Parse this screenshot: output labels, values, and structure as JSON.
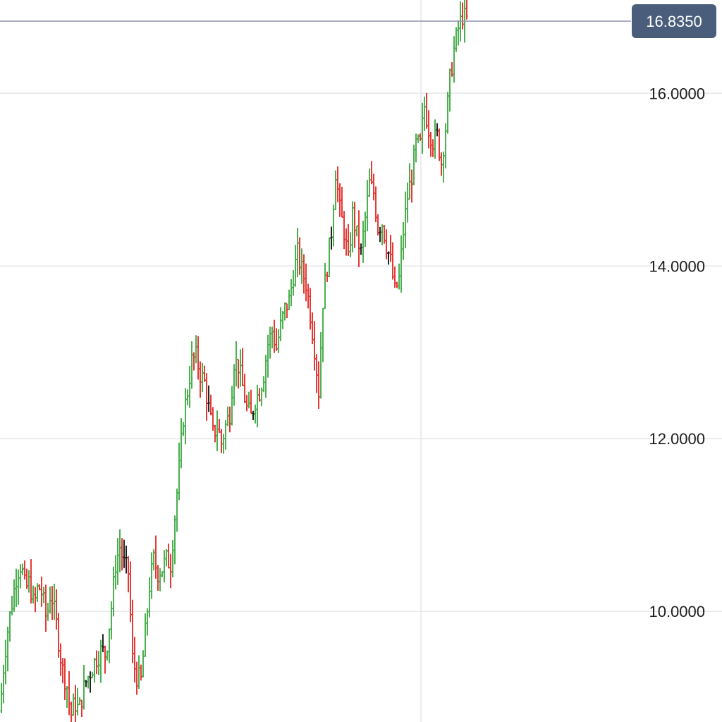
{
  "chart_data": {
    "type": "ohlc",
    "title": "",
    "xlabel": "",
    "ylabel": "",
    "ylim": [
      8.72,
      17.08
    ],
    "y_ticks": [
      "10.0000",
      "12.0000",
      "14.0000",
      "16.0000"
    ],
    "y_tick_values": [
      10,
      12,
      14,
      16
    ],
    "grid": true,
    "current_price": {
      "value": 16.835,
      "label": "16.8350"
    },
    "colors": {
      "up": "#4caf50",
      "down": "#e53935",
      "neutral": "#222222",
      "grid": "#e6e6ea",
      "price_line": "#8e93b0",
      "badge": "#4a5d7a"
    },
    "anchors": [
      [
        0,
        8.85
      ],
      [
        6,
        9.45
      ],
      [
        12,
        9.85
      ],
      [
        18,
        10.15
      ],
      [
        24,
        10.45
      ],
      [
        30,
        10.55
      ],
      [
        36,
        10.25
      ],
      [
        42,
        10.35
      ],
      [
        48,
        10.05
      ],
      [
        54,
        10.3
      ],
      [
        60,
        10.2
      ],
      [
        66,
        9.9
      ],
      [
        72,
        10.25
      ],
      [
        80,
        9.85
      ],
      [
        88,
        9.35
      ],
      [
        96,
        9.1
      ],
      [
        100,
        8.78
      ],
      [
        106,
        8.95
      ],
      [
        112,
        8.85
      ],
      [
        120,
        9.15
      ],
      [
        128,
        9.3
      ],
      [
        136,
        9.45
      ],
      [
        144,
        9.55
      ],
      [
        150,
        9.5
      ],
      [
        158,
        10.05
      ],
      [
        164,
        10.55
      ],
      [
        170,
        10.75
      ],
      [
        176,
        10.55
      ],
      [
        182,
        10.45
      ],
      [
        188,
        9.45
      ],
      [
        194,
        9.25
      ],
      [
        200,
        9.2
      ],
      [
        206,
        9.75
      ],
      [
        212,
        10.3
      ],
      [
        218,
        10.6
      ],
      [
        224,
        10.45
      ],
      [
        230,
        10.5
      ],
      [
        236,
        10.6
      ],
      [
        242,
        10.55
      ],
      [
        248,
        11.1
      ],
      [
        254,
        11.65
      ],
      [
        260,
        12.25
      ],
      [
        266,
        12.55
      ],
      [
        272,
        12.9
      ],
      [
        278,
        12.95
      ],
      [
        284,
        12.75
      ],
      [
        290,
        12.65
      ],
      [
        296,
        12.35
      ],
      [
        302,
        12.05
      ],
      [
        308,
        12.15
      ],
      [
        314,
        11.95
      ],
      [
        320,
        12.15
      ],
      [
        326,
        12.3
      ],
      [
        332,
        12.9
      ],
      [
        338,
        12.85
      ],
      [
        344,
        12.6
      ],
      [
        350,
        12.35
      ],
      [
        356,
        12.25
      ],
      [
        362,
        12.45
      ],
      [
        368,
        12.55
      ],
      [
        374,
        12.75
      ],
      [
        380,
        13.1
      ],
      [
        386,
        13.25
      ],
      [
        392,
        13.05
      ],
      [
        398,
        13.3
      ],
      [
        404,
        13.5
      ],
      [
        410,
        13.6
      ],
      [
        416,
        13.9
      ],
      [
        422,
        14.15
      ],
      [
        428,
        13.95
      ],
      [
        434,
        13.8
      ],
      [
        440,
        13.45
      ],
      [
        446,
        13.05
      ],
      [
        452,
        12.55
      ],
      [
        458,
        13.6
      ],
      [
        464,
        14.0
      ],
      [
        470,
        14.4
      ],
      [
        476,
        15.1
      ],
      [
        482,
        14.65
      ],
      [
        488,
        14.4
      ],
      [
        494,
        14.05
      ],
      [
        500,
        14.6
      ],
      [
        506,
        14.35
      ],
      [
        512,
        14.15
      ],
      [
        518,
        14.55
      ],
      [
        524,
        14.95
      ],
      [
        530,
        14.85
      ],
      [
        536,
        14.45
      ],
      [
        542,
        14.5
      ],
      [
        548,
        14.25
      ],
      [
        554,
        14.05
      ],
      [
        560,
        13.7
      ],
      [
        566,
        13.85
      ],
      [
        572,
        14.4
      ],
      [
        578,
        14.8
      ],
      [
        584,
        15.05
      ],
      [
        590,
        15.4
      ],
      [
        596,
        15.4
      ],
      [
        602,
        15.85
      ],
      [
        608,
        15.6
      ],
      [
        614,
        15.45
      ],
      [
        620,
        15.5
      ],
      [
        626,
        15.2
      ],
      [
        632,
        15.6
      ],
      [
        638,
        16.15
      ],
      [
        644,
        16.5
      ],
      [
        650,
        16.75
      ],
      [
        656,
        16.9
      ],
      [
        662,
        16.85
      ]
    ]
  }
}
